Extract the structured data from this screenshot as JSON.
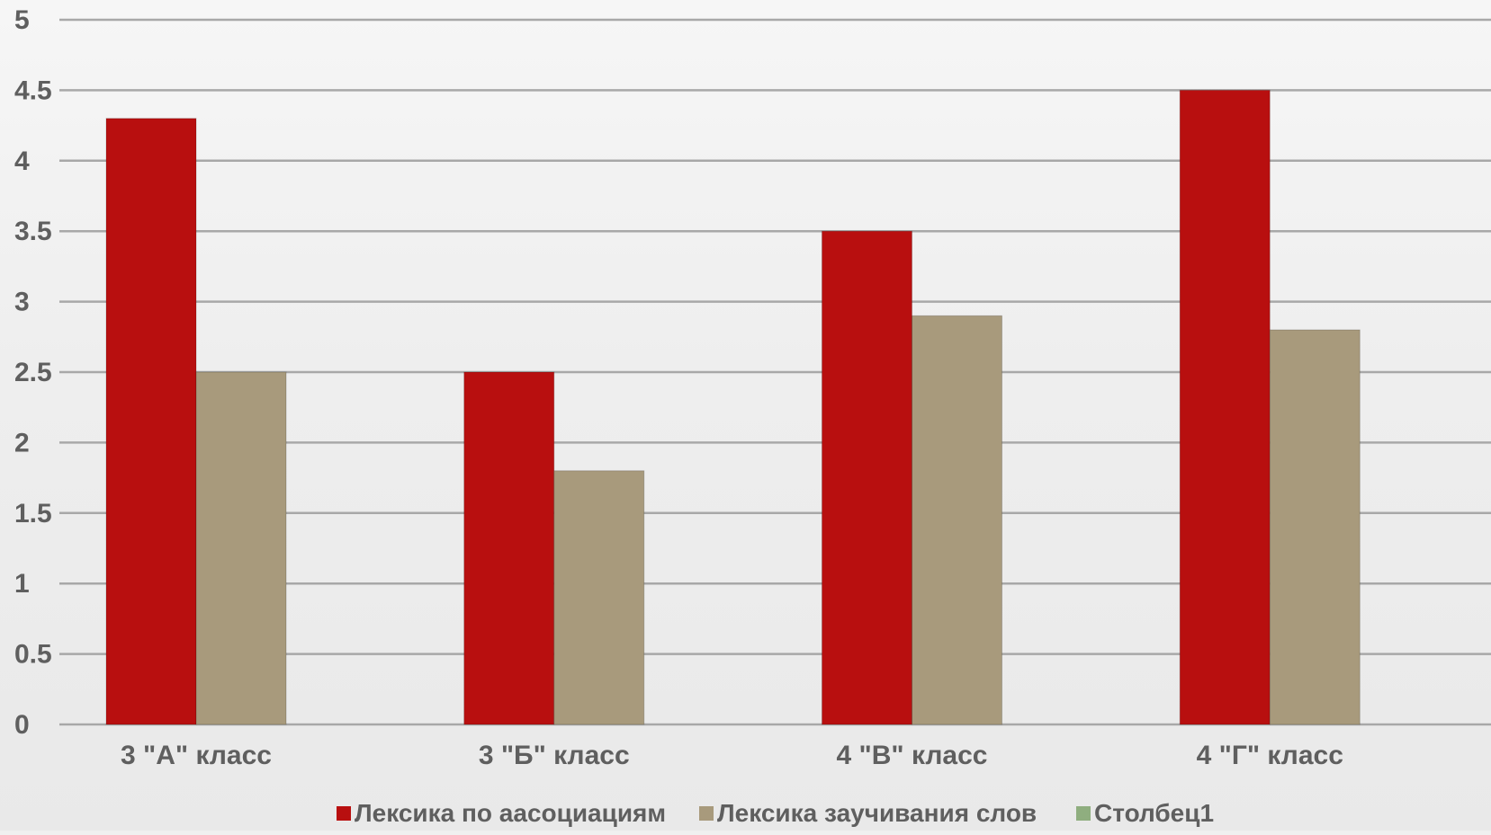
{
  "chart_data": {
    "type": "bar",
    "categories": [
      "3 \"А\" класс",
      "3 \"Б\" класс",
      "4 \"В\" класс",
      "4 \"Г\" класс"
    ],
    "series": [
      {
        "name": "Лексика по аасоциациям",
        "values": [
          4.3,
          2.5,
          3.5,
          4.5
        ],
        "color": "#b80f0f"
      },
      {
        "name": "Лексика заучивания слов",
        "values": [
          2.5,
          1.8,
          2.9,
          2.8
        ],
        "color": "#a89a7c"
      },
      {
        "name": "Столбец1",
        "values": [
          null,
          null,
          null,
          null
        ],
        "color": "#8fae7f"
      }
    ],
    "ylim": [
      0,
      5
    ],
    "yticks": [
      0,
      0.5,
      1,
      1.5,
      2,
      2.5,
      3,
      3.5,
      4,
      4.5,
      5
    ],
    "ytick_labels": [
      "0",
      "0.5",
      "1",
      "1.5",
      "2",
      "2.5",
      "3",
      "3.5",
      "4",
      "4.5",
      "5"
    ],
    "title": "",
    "xlabel": "",
    "ylabel": "",
    "grid": true,
    "legend_position": "bottom"
  }
}
